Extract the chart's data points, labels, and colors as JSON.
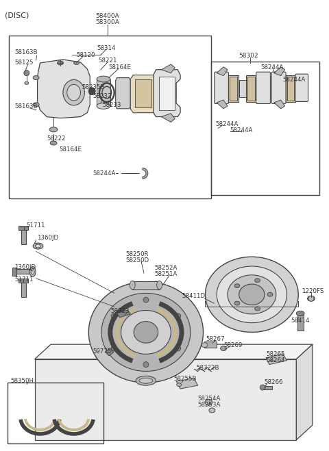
{
  "bg_color": "#ffffff",
  "line_color": "#444444",
  "text_color": "#333333",
  "figsize": [
    4.8,
    6.59
  ],
  "dpi": 100,
  "labels": {
    "disc_header": "(DISC)",
    "caliper_top1": "58400A",
    "caliper_top2": "58300A",
    "l58163B_t": "58163B",
    "l58314": "58314",
    "l58125": "58125",
    "l58120": "58120",
    "l58221": "58221",
    "l58164E_t": "58164E",
    "l58235B": "58235B",
    "l58232": "58232",
    "l58233": "58233",
    "l58163B_b": "58163B",
    "l58222": "58222",
    "l58164E_b": "58164E",
    "l58244A_c": "58244A",
    "l58302": "58302",
    "l58244A_r1": "58244A",
    "l58244A_r2": "58244A",
    "l58244A_r3": "58244A",
    "l58244A_r4": "58244A",
    "l51711_t": "51711",
    "l1360JD_t": "1360JD",
    "l58250R": "58250R",
    "l58250D": "58250D",
    "l1360JD_b": "1360JD",
    "l51711_b": "51711",
    "l58252A": "58252A",
    "l58251A": "58251A",
    "l58323": "58323",
    "l59775": "59775",
    "l58350H": "58350H",
    "l58411D": "58411D",
    "l1220FS": "1220FS",
    "l58414": "58414",
    "l58267": "58267",
    "l58269": "58269",
    "l58265": "58265",
    "l58264": "58264",
    "l58322B": "58322B",
    "l58255B": "58255B",
    "l58254A": "58254A",
    "l58253A": "58253A",
    "l58266": "58266"
  }
}
